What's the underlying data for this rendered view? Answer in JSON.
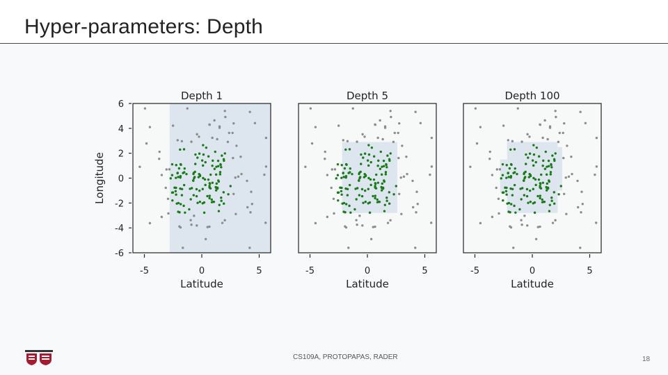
{
  "slide": {
    "title": "Hyper-parameters: Depth",
    "footer": "CS109A, PROTOPAPAS, RADER",
    "page_number": "18"
  },
  "colors": {
    "in_class": "#1a7a1a",
    "out_class": "#8c8c8c",
    "region": "#dde5ee",
    "panel_bg": "#f7f9f9"
  },
  "icons": {
    "logo": "harvard-shields-logo"
  },
  "chart_data": [
    {
      "type": "scatter",
      "title": "Depth 1",
      "xlabel": "Latitude",
      "ylabel": "Longitude",
      "xlim": [
        -6,
        6
      ],
      "ylim": [
        -6,
        6
      ],
      "xticks": [
        "-5",
        "0",
        "5"
      ],
      "yticks": [
        "6",
        "4",
        "2",
        "0",
        "-2",
        "-4",
        "-6"
      ],
      "regions": [
        {
          "x": [
            -2.8,
            6
          ],
          "y": [
            -6,
            6
          ]
        }
      ]
    },
    {
      "type": "scatter",
      "title": "Depth 5",
      "xlabel": "Latitude",
      "ylabel": "",
      "xlim": [
        -6,
        6
      ],
      "ylim": [
        -6,
        6
      ],
      "xticks": [
        "-5",
        "0",
        "5"
      ],
      "yticks": [],
      "regions": [
        {
          "x": [
            -2.2,
            2.6
          ],
          "y": [
            -2.8,
            2.9
          ]
        }
      ]
    },
    {
      "type": "scatter",
      "title": "Depth 100",
      "xlabel": "Latitude",
      "ylabel": "",
      "xlim": [
        -6,
        6
      ],
      "ylim": [
        -6,
        6
      ],
      "xticks": [
        "-5",
        "0",
        "5"
      ],
      "yticks": [],
      "regions": [
        {
          "x": [
            -2.2,
            2.2
          ],
          "y": [
            -2.8,
            2.9
          ]
        },
        {
          "x": [
            -2.8,
            -1.9
          ],
          "y": [
            -1.2,
            1.5
          ]
        },
        {
          "x": [
            2.2,
            2.6
          ],
          "y": [
            -1.0,
            2.5
          ]
        }
      ]
    }
  ]
}
